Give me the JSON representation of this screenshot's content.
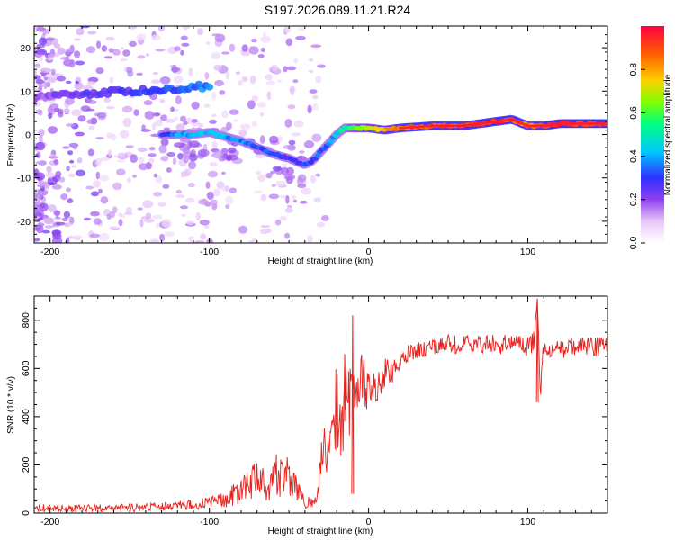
{
  "figure_title": "S197.2026.089.11.21.R24",
  "chart_data": [
    {
      "type": "heatmap",
      "title": "S197.2026.089.11.21.R24",
      "xlabel": "Height of straight line (km)",
      "ylabel": "Frequency (Hz)",
      "xlim": [
        -210,
        150
      ],
      "ylim": [
        -25,
        25
      ],
      "xticks": [
        -200,
        -100,
        0,
        100
      ],
      "yticks": [
        -20,
        -10,
        0,
        10,
        20
      ],
      "colorbar": {
        "label": "Normalized spectral amplitude",
        "range": [
          0.0,
          1.0
        ],
        "ticks": [
          0.0,
          0.2,
          0.4,
          0.6,
          0.8
        ],
        "colormap": [
          "#ffffff",
          "#e8c8f8",
          "#9040f0",
          "#3030ff",
          "#00c8ff",
          "#00ff80",
          "#80ff00",
          "#ffd000",
          "#ff6000",
          "#ff0040"
        ]
      },
      "ridge_main": {
        "x": [
          -130,
          -120,
          -110,
          -100,
          -90,
          -80,
          -70,
          -60,
          -50,
          -40,
          -35,
          -30,
          -25,
          -20,
          -15,
          -10,
          0,
          10,
          20,
          40,
          60,
          80,
          90,
          100,
          110,
          120,
          150
        ],
        "y": [
          0,
          0,
          0,
          0.5,
          -0.5,
          -1.5,
          -3,
          -4.5,
          -5.5,
          -7,
          -6,
          -4,
          -2,
          0,
          1.5,
          1.5,
          1.5,
          1,
          1.5,
          2,
          2,
          3,
          3.5,
          2,
          2,
          2.5,
          2.5
        ],
        "amplitude": [
          0.35,
          0.4,
          0.45,
          0.45,
          0.4,
          0.4,
          0.35,
          0.35,
          0.3,
          0.35,
          0.35,
          0.35,
          0.4,
          0.45,
          0.55,
          0.6,
          0.7,
          0.8,
          0.85,
          0.9,
          0.9,
          0.95,
          0.9,
          0.85,
          0.9,
          0.95,
          0.95
        ]
      },
      "ridge_upper": {
        "x": [
          -210,
          -190,
          -170,
          -150,
          -130,
          -120,
          -110,
          -100
        ],
        "y": [
          8.5,
          9,
          9.5,
          10,
          10.5,
          10.5,
          11,
          11
        ],
        "amplitude": [
          0.2,
          0.25,
          0.28,
          0.3,
          0.35,
          0.35,
          0.38,
          0.4
        ]
      }
    },
    {
      "type": "line",
      "xlabel": "Height of straight line (km)",
      "ylabel": "SNR (10 * v/v)",
      "xlim": [
        -210,
        150
      ],
      "ylim": [
        0,
        900
      ],
      "xticks": [
        -200,
        -100,
        0,
        100
      ],
      "yticks": [
        0,
        200,
        400,
        600,
        800
      ],
      "series": [
        {
          "name": "SNR",
          "color": "#e8201c",
          "x": [
            -210,
            -200,
            -190,
            -180,
            -170,
            -160,
            -150,
            -140,
            -130,
            -120,
            -110,
            -100,
            -90,
            -85,
            -80,
            -75,
            -70,
            -65,
            -60,
            -55,
            -50,
            -45,
            -40,
            -35,
            -32,
            -30,
            -28,
            -25,
            -22,
            -20,
            -18,
            -16,
            -15,
            -12,
            -10,
            -8,
            -5,
            0,
            5,
            10,
            15,
            20,
            25,
            30,
            40,
            50,
            60,
            70,
            80,
            90,
            100,
            104,
            106,
            108,
            110,
            120,
            130,
            140,
            150
          ],
          "y": [
            20,
            22,
            18,
            20,
            22,
            20,
            24,
            25,
            28,
            32,
            38,
            45,
            60,
            85,
            100,
            130,
            150,
            120,
            160,
            180,
            160,
            100,
            40,
            30,
            60,
            200,
            280,
            250,
            380,
            300,
            420,
            350,
            550,
            480,
            500,
            420,
            560,
            500,
            520,
            600,
            580,
            640,
            660,
            670,
            690,
            700,
            700,
            700,
            700,
            700,
            690,
            720,
            860,
            460,
            680,
            680,
            690,
            690,
            690
          ],
          "min": [
            0,
            5,
            5,
            0,
            5,
            5,
            5,
            8,
            10,
            12,
            15,
            15,
            20,
            30,
            40,
            50,
            55,
            45,
            50,
            60,
            55,
            30,
            20,
            20,
            25,
            120,
            180,
            150,
            250,
            180,
            300,
            80,
            380,
            300,
            350,
            380,
            420,
            420,
            450,
            520,
            540,
            600,
            620,
            640,
            660,
            660,
            660,
            660,
            660,
            660,
            650,
            640,
            700,
            460,
            640,
            640,
            650,
            650,
            650
          ],
          "max": [
            35,
            38,
            35,
            35,
            38,
            35,
            40,
            42,
            45,
            50,
            60,
            70,
            90,
            120,
            150,
            180,
            220,
            190,
            240,
            260,
            230,
            150,
            80,
            60,
            120,
            280,
            360,
            330,
            460,
            820,
            540,
            470,
            680,
            600,
            620,
            520,
            680,
            600,
            620,
            680,
            640,
            690,
            700,
            710,
            720,
            740,
            740,
            740,
            740,
            740,
            730,
            760,
            890,
            560,
            730,
            730,
            730,
            730,
            730
          ]
        }
      ]
    }
  ]
}
